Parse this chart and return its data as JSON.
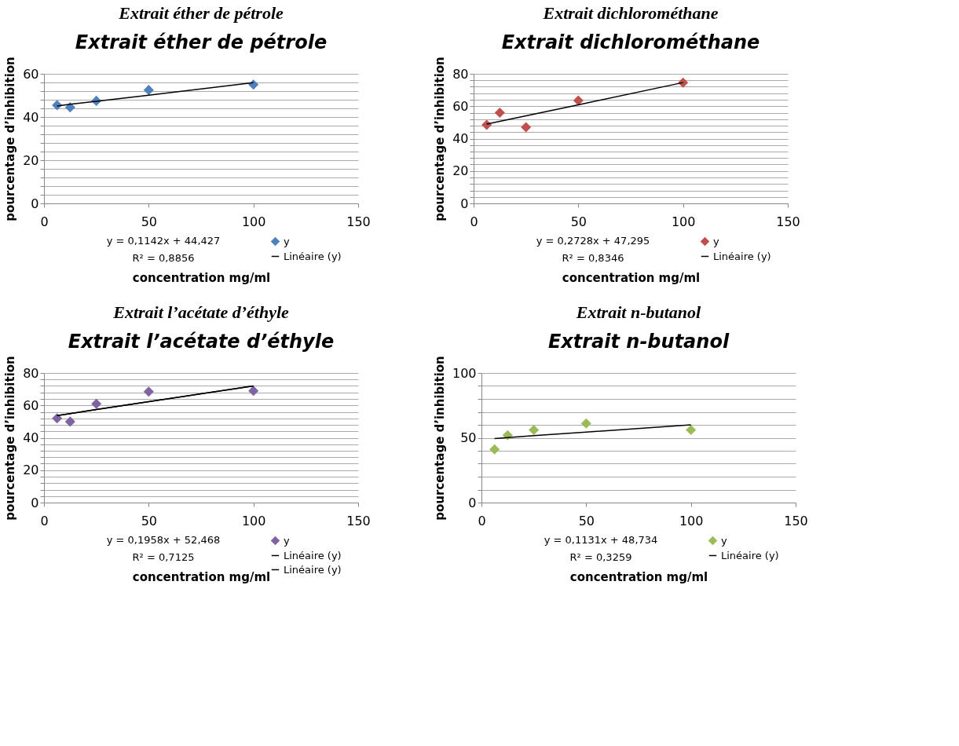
{
  "chart_data": [
    {
      "type": "scatter",
      "title": "Extrait éther de pétrole",
      "subtitle": "Extrait éther de pétrole",
      "xlabel": "concentration mg/ml",
      "ylabel": "pourcentage d’inhibition",
      "x": [
        6.25,
        12.5,
        25,
        50,
        100
      ],
      "series": [
        {
          "name": "y",
          "color": "#4f81bd",
          "marker": "diamond",
          "values": [
            45.5,
            44.5,
            47.5,
            52.5,
            55
          ]
        },
        {
          "name": "Linéaire (y)",
          "type": "line",
          "color": "#000000",
          "values": [
            45.1,
            45.9,
            47.3,
            50.1,
            55.9
          ]
        }
      ],
      "xlim": [
        0,
        150
      ],
      "xticks": [
        0,
        50,
        100,
        150
      ],
      "ylim": [
        0,
        60
      ],
      "yticks": [
        0,
        {
          "value": 4,
          "label": null
        },
        {
          "value": 8,
          "label": null
        },
        {
          "value": 12,
          "label": null
        },
        {
          "value": 16,
          "label": null
        },
        20,
        {
          "value": 24,
          "label": null
        },
        {
          "value": 28,
          "label": null
        },
        {
          "value": 32,
          "label": null
        },
        {
          "value": 36,
          "label": null
        },
        40,
        {
          "value": 44,
          "label": null
        },
        {
          "value": 48,
          "label": null
        },
        {
          "value": 52,
          "label": null
        },
        {
          "value": 56,
          "label": null
        },
        60
      ],
      "annotations": [
        "y = 0,1142x + 44,427",
        "R² = 0,8856"
      ],
      "grid": "y",
      "legend": "bottom right"
    },
    {
      "type": "scatter",
      "title": "Extrait dichlorométhane",
      "subtitle": "Extrait dichlorométhane",
      "xlabel": "concentration mg/ml",
      "ylabel": "pourcentage d’inhibition",
      "x": [
        6.25,
        12.5,
        25,
        50,
        100
      ],
      "series": [
        {
          "name": "y",
          "color": "#c0504d",
          "marker": "diamond",
          "values": [
            48.5,
            56,
            47,
            63.5,
            74.5
          ]
        },
        {
          "name": "Linéaire (y)",
          "type": "line",
          "color": "#000000",
          "values": [
            49.0,
            50.7,
            54.1,
            60.9,
            74.6
          ]
        }
      ],
      "xlim": [
        0,
        150
      ],
      "xticks": [
        0,
        50,
        100,
        150
      ],
      "ylim": [
        0,
        80
      ],
      "yticks": [
        0,
        {
          "value": 4,
          "label": null
        },
        {
          "value": 8,
          "label": null
        },
        {
          "value": 12,
          "label": null
        },
        {
          "value": 16,
          "label": null
        },
        20,
        {
          "value": 24,
          "label": null
        },
        {
          "value": 28,
          "label": null
        },
        {
          "value": 32,
          "label": null
        },
        {
          "value": 36,
          "label": null
        },
        40,
        {
          "value": 44,
          "label": null
        },
        {
          "value": 48,
          "label": null
        },
        {
          "value": 52,
          "label": null
        },
        {
          "value": 56,
          "label": null
        },
        60,
        {
          "value": 64,
          "label": null
        },
        {
          "value": 68,
          "label": null
        },
        {
          "value": 72,
          "label": null
        },
        {
          "value": 76,
          "label": null
        },
        80
      ],
      "annotations": [
        "y = 0,2728x + 47,295",
        "R² = 0,8346"
      ],
      "grid": "y",
      "legend": "bottom right"
    },
    {
      "type": "scatter",
      "title": "Extrait l’acétate d’éthyle",
      "subtitle": "Extrait l’acétate d’éthyle",
      "xlabel": "concentration mg/ml",
      "ylabel": "pourcentage d’inhibition",
      "x": [
        6.25,
        12.5,
        25,
        50,
        100
      ],
      "series": [
        {
          "name": "y",
          "color": "#8064a2",
          "marker": "diamond",
          "values": [
            52,
            50,
            61,
            68.5,
            69
          ]
        },
        {
          "name": "Linéaire (y)",
          "type": "line",
          "color": "#000000",
          "values": [
            53.7,
            54.9,
            57.4,
            62.3,
            72.0
          ]
        },
        {
          "name": "Linéaire (y)",
          "type": "line",
          "color": "#000000",
          "values": [
            53.7,
            54.9,
            57.4,
            62.3,
            72.0
          ]
        }
      ],
      "xlim": [
        0,
        150
      ],
      "xticks": [
        0,
        50,
        100,
        150
      ],
      "ylim": [
        0,
        80
      ],
      "yticks": [
        0,
        {
          "value": 4,
          "label": null
        },
        {
          "value": 8,
          "label": null
        },
        {
          "value": 12,
          "label": null
        },
        {
          "value": 16,
          "label": null
        },
        20,
        {
          "value": 24,
          "label": null
        },
        {
          "value": 28,
          "label": null
        },
        {
          "value": 32,
          "label": null
        },
        {
          "value": 36,
          "label": null
        },
        40,
        {
          "value": 44,
          "label": null
        },
        {
          "value": 48,
          "label": null
        },
        {
          "value": 52,
          "label": null
        },
        {
          "value": 56,
          "label": null
        },
        60,
        {
          "value": 64,
          "label": null
        },
        {
          "value": 68,
          "label": null
        },
        {
          "value": 72,
          "label": null
        },
        {
          "value": 76,
          "label": null
        },
        80
      ],
      "annotations": [
        "y = 0,1958x + 52,468",
        "R² = 0,7125"
      ],
      "grid": "y",
      "legend": "bottom right"
    },
    {
      "type": "scatter",
      "title": "Extrait n-butanol",
      "subtitle": "Extrait n-butanol",
      "xlabel": "concentration mg/ml",
      "ylabel": "pourcentage d’inhibition",
      "x": [
        6.25,
        12.5,
        25,
        50,
        100
      ],
      "series": [
        {
          "name": "y",
          "color": "#9bbb59",
          "marker": "diamond",
          "values": [
            41,
            52,
            56,
            61,
            56
          ]
        },
        {
          "name": "Linéaire (y)",
          "type": "line",
          "color": "#000000",
          "values": [
            49.4,
            50.1,
            51.6,
            54.4,
            60.0
          ]
        }
      ],
      "xlim": [
        0,
        150
      ],
      "xticks": [
        0,
        50,
        100,
        150
      ],
      "ylim": [
        0,
        100
      ],
      "yticks": [
        0,
        {
          "value": 10,
          "label": null
        },
        {
          "value": 20,
          "label": null
        },
        {
          "value": 30,
          "label": null
        },
        {
          "value": 40,
          "label": null
        },
        50,
        {
          "value": 60,
          "label": null
        },
        {
          "value": 70,
          "label": null
        },
        {
          "value": 80,
          "label": null
        },
        {
          "value": 90,
          "label": null
        },
        100
      ],
      "annotations": [
        "y = 0,1131x + 48,734",
        "R² = 0,3259"
      ],
      "grid": "y",
      "legend": "bottom right"
    }
  ]
}
